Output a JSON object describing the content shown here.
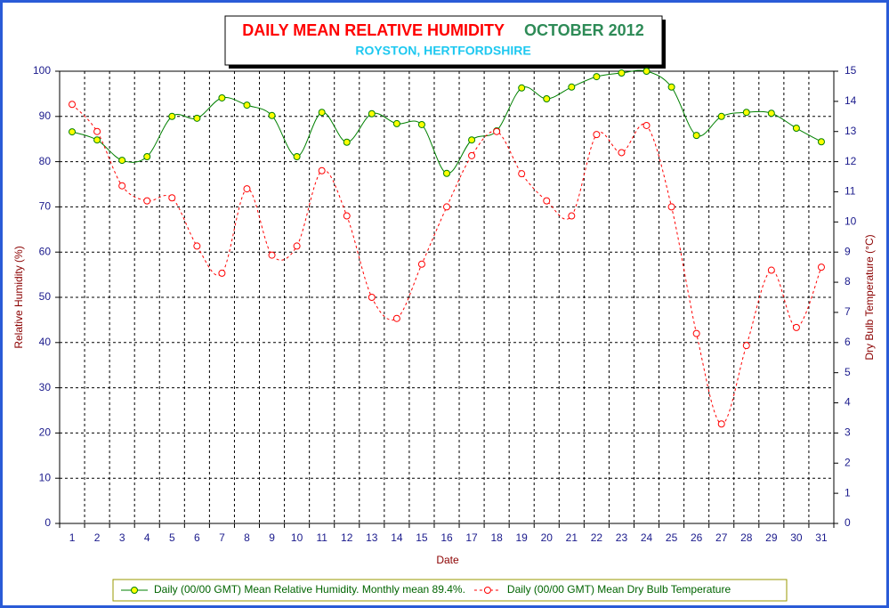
{
  "chart_data": {
    "type": "line",
    "title": "DAILY MEAN RELATIVE HUMIDITY",
    "title_period": "OCTOBER 2012",
    "subtitle": "ROYSTON, HERTFORDSHIRE",
    "x_label": "Date",
    "y_label": "Relative Humidity (%)",
    "y2_label": "Dry Bulb Temperature (°C)",
    "categories": [
      "1",
      "2",
      "3",
      "4",
      "5",
      "6",
      "7",
      "8",
      "9",
      "10",
      "11",
      "12",
      "13",
      "14",
      "15",
      "16",
      "17",
      "18",
      "19",
      "20",
      "21",
      "22",
      "23",
      "24",
      "25",
      "26",
      "27",
      "28",
      "29",
      "30",
      "31"
    ],
    "series": [
      {
        "name": "Daily (00/00 GMT) Mean Relative Humidity. Monthly mean 89.4%.",
        "color": "#008000",
        "marker_fill": "#ffff00",
        "line_style": "solid",
        "axis": "y",
        "values": [
          86.6,
          84.8,
          80.3,
          81.1,
          90.0,
          89.6,
          94.1,
          92.5,
          90.2,
          81.1,
          90.9,
          84.3,
          90.6,
          88.4,
          88.2,
          77.4,
          84.8,
          86.8,
          96.3,
          93.9,
          96.5,
          98.8,
          99.6,
          100,
          96.5,
          85.8,
          90.0,
          90.9,
          90.7,
          87.4,
          84.4
        ]
      },
      {
        "name": "Daily (00/00 GMT) Mean Dry Bulb Temperature",
        "color": "#ff0000",
        "marker_fill": "#ffffff",
        "line_style": "dashed",
        "axis": "y2",
        "values": [
          13.9,
          13.0,
          11.2,
          10.7,
          10.8,
          9.2,
          8.3,
          11.1,
          8.9,
          9.2,
          11.7,
          10.2,
          7.5,
          6.8,
          8.6,
          10.5,
          12.2,
          13.0,
          11.6,
          10.7,
          10.2,
          12.9,
          12.3,
          13.2,
          10.5,
          6.3,
          3.3,
          5.9,
          8.4,
          6.5,
          8.5
        ]
      }
    ],
    "ylim": [
      0,
      100
    ],
    "yticks": [
      0,
      10,
      20,
      30,
      40,
      50,
      60,
      70,
      80,
      90,
      100
    ],
    "y2lim": [
      0,
      15
    ],
    "y2ticks": [
      0,
      1,
      2,
      3,
      4,
      5,
      6,
      7,
      8,
      9,
      10,
      11,
      12,
      13,
      14,
      15
    ],
    "grid": true,
    "smooth": true,
    "legend": "bottom"
  }
}
